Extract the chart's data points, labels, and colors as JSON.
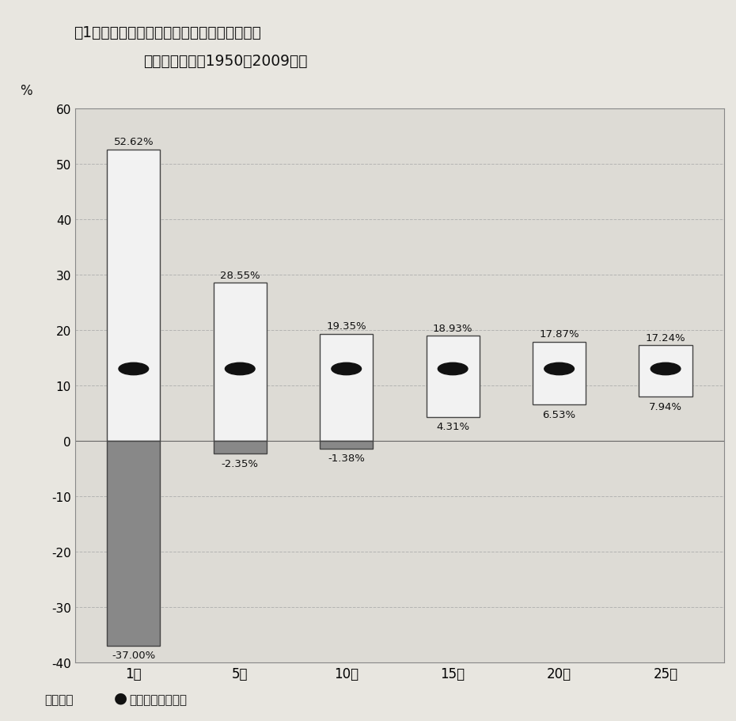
{
  "title_line1": "図1　株式投賄の投賄期間と年平均リターンの",
  "title_line2": "ちらばり方　（1950～2009年）",
  "categories": [
    "1年",
    "5年",
    "10年",
    "15年",
    "20年",
    "25年"
  ],
  "max_values": [
    52.62,
    28.55,
    19.35,
    18.93,
    17.87,
    17.24
  ],
  "min_values": [
    -37.0,
    -2.35,
    -1.38,
    4.31,
    6.53,
    7.94
  ],
  "avg_values": [
    13.0,
    13.0,
    13.0,
    13.0,
    13.0,
    13.0
  ],
  "max_labels": [
    "52.62%",
    "28.55%",
    "19.35%",
    "18.93%",
    "17.87%",
    "17.24%"
  ],
  "min_labels": [
    "-37.00%",
    "-2.35%",
    "-1.38%",
    "4.31%",
    "6.53%",
    "7.94%"
  ],
  "ylabel": "%",
  "ylim": [
    -40,
    60
  ],
  "yticks": [
    -40,
    -30,
    -20,
    -10,
    0,
    10,
    20,
    30,
    40,
    50,
    60
  ],
  "bar_width": 0.5,
  "box_color_positive": "#f2f2f2",
  "box_color_negative": "#888888",
  "box_edge_color": "#444444",
  "avg_marker_color": "#111111",
  "grid_color": "#aaaaaa",
  "bg_color": "#e8e6e0",
  "plot_bg_color": "#dddbd5",
  "note_prefix": "（注）　",
  "note_dot": "●",
  "note_suffix": "は平均値を示す。",
  "fig_width": 9.3,
  "fig_height": 9.12,
  "dpi": 100
}
